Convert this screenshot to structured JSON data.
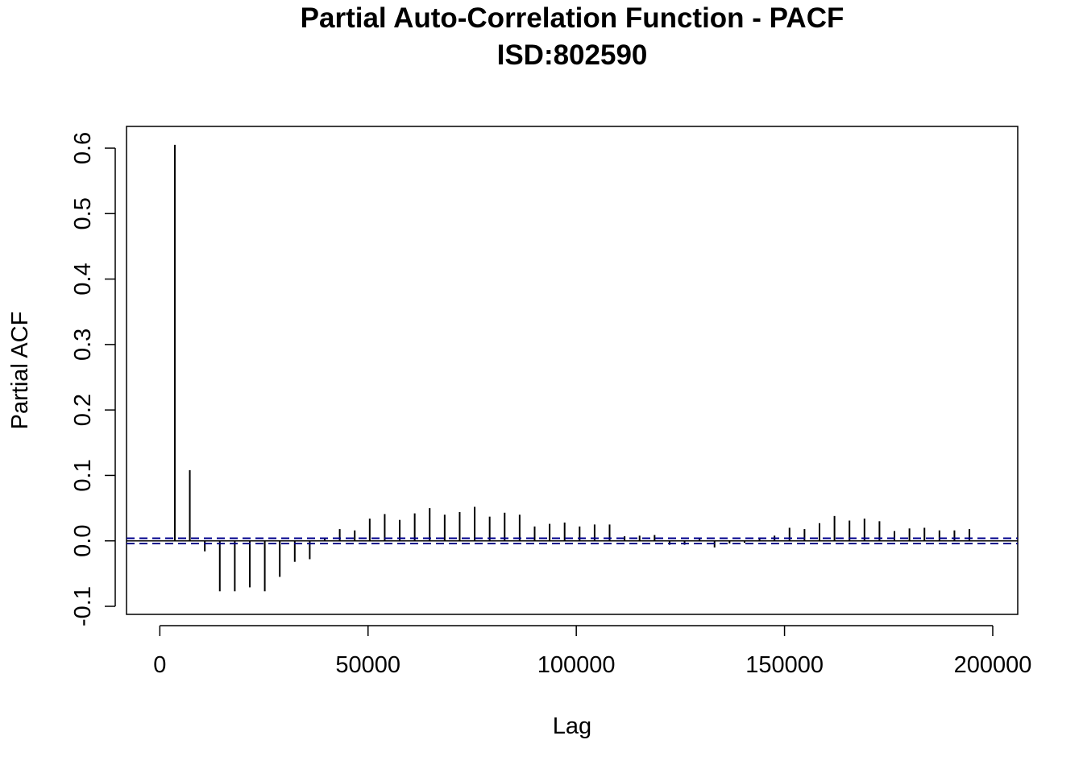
{
  "chart_data": {
    "type": "bar",
    "title": "Partial Auto-Correlation Function - PACF",
    "subtitle": "ISD:802590",
    "xlabel": "Lag",
    "ylabel": "Partial ACF",
    "xlim": [
      -8000,
      206000
    ],
    "ylim": [
      -0.1,
      0.6
    ],
    "x_ticks": [
      "0",
      "50000",
      "100000",
      "150000",
      "200000"
    ],
    "y_ticks": [
      "-0.1",
      "0.0",
      "0.1",
      "0.2",
      "0.3",
      "0.4",
      "0.5",
      "0.6"
    ],
    "confidence_band": [
      -0.004,
      0.004
    ],
    "band_color": "#00008b",
    "lags": [
      3600,
      7200,
      10800,
      14400,
      18000,
      21600,
      25200,
      28800,
      32400,
      36000,
      39600,
      43200,
      46800,
      50400,
      54000,
      57600,
      61200,
      64800,
      68400,
      72000,
      75600,
      79200,
      82800,
      86400,
      90000,
      93600,
      97200,
      100800,
      104400,
      108000,
      111600,
      115200,
      118800,
      122400,
      126000,
      129600,
      133200,
      136800,
      140400,
      144000,
      147600,
      151200,
      154800,
      158400,
      162000,
      165600,
      169200,
      172800,
      176400,
      180000,
      183600,
      187200,
      190800,
      194400
    ],
    "values": [
      0.605,
      0.108,
      -0.016,
      -0.077,
      -0.077,
      -0.071,
      -0.077,
      -0.055,
      -0.032,
      -0.028,
      0.003,
      0.018,
      0.016,
      0.034,
      0.041,
      0.032,
      0.042,
      0.05,
      0.04,
      0.044,
      0.052,
      0.037,
      0.043,
      0.04,
      0.022,
      0.026,
      0.028,
      0.022,
      0.025,
      0.025,
      0.007,
      0.008,
      0.009,
      -0.006,
      -0.006,
      0.004,
      -0.01,
      -0.004,
      -0.003,
      0.003,
      0.008,
      0.02,
      0.018,
      0.027,
      0.038,
      0.031,
      0.034,
      0.03,
      0.015,
      0.019,
      0.02,
      0.016,
      0.016,
      0.018
    ]
  }
}
